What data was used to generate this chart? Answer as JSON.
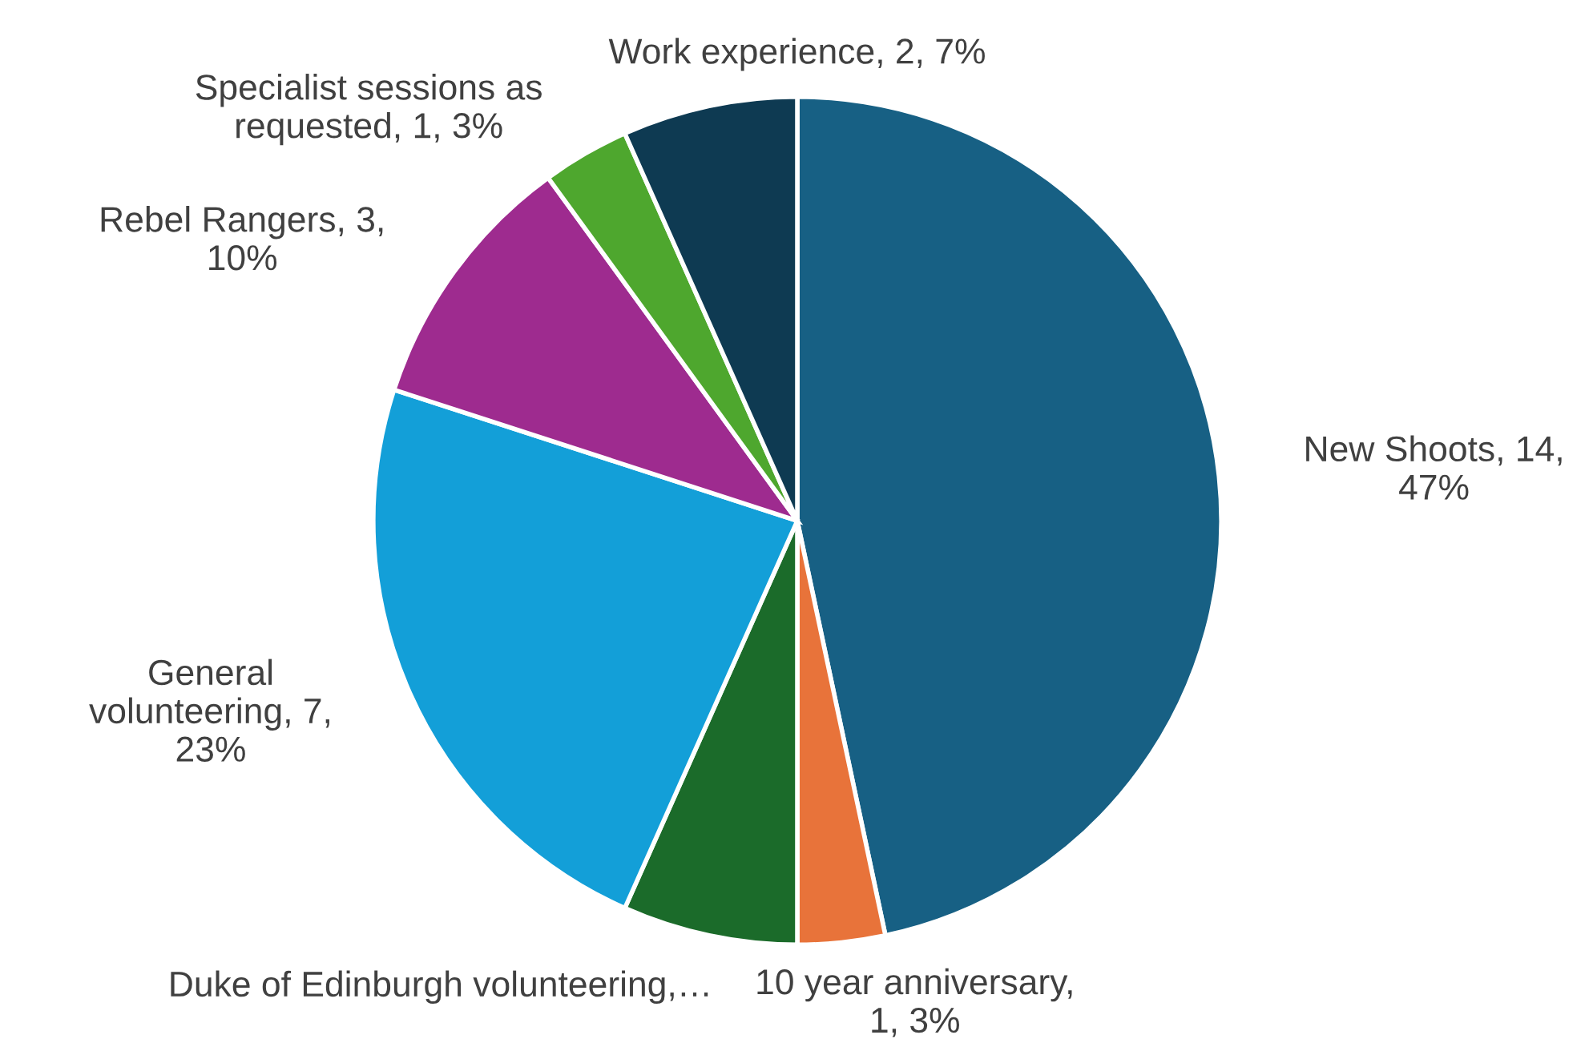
{
  "chart_data": {
    "type": "pie",
    "categories": [
      "New Shoots",
      "10 year anniversary",
      "Duke of Edinburgh volunteering",
      "General\nvolunteering",
      "Rebel Rangers",
      "Specialist sessions as\nrequested",
      "Work experience"
    ],
    "values": [
      14,
      1,
      2,
      7,
      3,
      1,
      2
    ],
    "colors": [
      "#176084",
      "#e8733a",
      "#1b6b2a",
      "#139fd8",
      "#9e2b8f",
      "#4ea72e",
      "#0e3a52"
    ],
    "value_labels": [
      ", 14,\n47%",
      ",\n1, 3%",
      ",…",
      ", 7,\n23%",
      ", 3,\n10%",
      ", 1, 3%",
      ", 2, 7%"
    ],
    "legend": false
  }
}
